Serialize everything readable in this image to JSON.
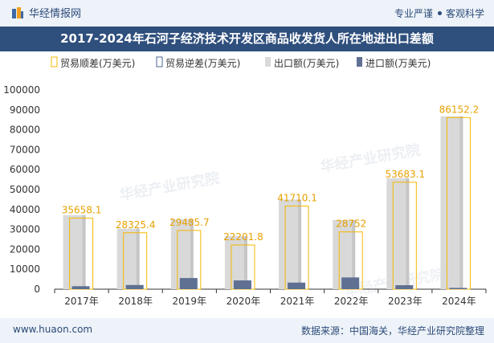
{
  "header": {
    "brand": "华经情报网",
    "tagline_left": "专业严谨",
    "tagline_right": "客观科学"
  },
  "title": "2017-2024年石河子经济技术开发区商品收发货人所在地进出口差额",
  "footer": {
    "site": "www.huaon.com",
    "source": "数据来源：中国海关，华经产业研究院整理"
  },
  "watermark": "华经产业研究院",
  "colors": {
    "surplus": "#f5b800",
    "deficit": "#4a6592",
    "export": "#d9d9d9",
    "import": "#5f7092",
    "title_bg": "#2f4f7d"
  },
  "chart_data": {
    "type": "bar",
    "categories": [
      "2017年",
      "2018年",
      "2019年",
      "2020年",
      "2021年",
      "2022年",
      "2023年",
      "2024年"
    ],
    "series": [
      {
        "name": "贸易顺差(万美元)",
        "values": [
          35658.1,
          28325.4,
          29485.7,
          22201.8,
          41710.1,
          28752,
          53683.1,
          86152.2
        ]
      },
      {
        "name": "贸易逆差(万美元)",
        "values": [
          0,
          0,
          0,
          0,
          0,
          0,
          0,
          0
        ]
      },
      {
        "name": "出口额(万美元)",
        "values": [
          37200,
          30400,
          35100,
          26600,
          45000,
          34700,
          55700,
          86800
        ]
      },
      {
        "name": "进口额(万美元)",
        "values": [
          1500,
          2100,
          5600,
          4400,
          3300,
          5900,
          2000,
          650
        ]
      }
    ],
    "data_labels": [
      "35658.1",
      "28325.4",
      "29485.7",
      "22201.8",
      "41710.1",
      "28752",
      "53683.1",
      "86152.2"
    ],
    "y_ticks": [
      "0",
      "10000",
      "20000",
      "30000",
      "40000",
      "50000",
      "60000",
      "70000",
      "80000",
      "90000",
      "100000"
    ],
    "ylim": [
      0,
      100000
    ],
    "legend_position": "top",
    "grid": false
  }
}
